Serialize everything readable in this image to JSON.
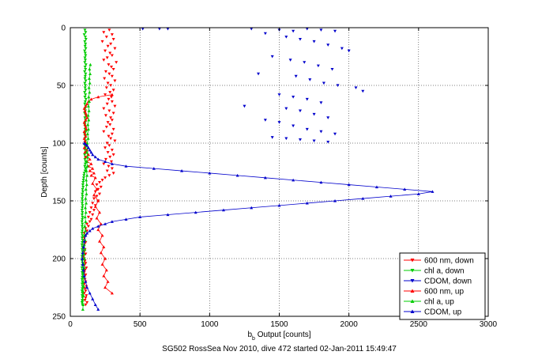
{
  "chart_data": {
    "type": "scatter",
    "title": "SG502 RossSea Nov 2010, dive 472 started 02-Jan-2011 15:49:47",
    "xlabel_main": "b",
    "xlabel_sub": "b",
    "xlabel_rest": " Output [counts]",
    "ylabel": "Depth [counts]",
    "xlim": [
      0,
      3000
    ],
    "ylim": [
      0,
      250
    ],
    "y_reversed": true,
    "grid": true,
    "x_ticks": [
      "0",
      "500",
      "1000",
      "1500",
      "2000",
      "2500",
      "3000"
    ],
    "y_ticks": [
      "0",
      "50",
      "100",
      "150",
      "200",
      "250"
    ],
    "legend_position": "bottom-right",
    "series": [
      {
        "name": "600 nm, down",
        "color": "#ff0000",
        "marker": "triangle-down",
        "style": "scatter",
        "x": [
          280,
          240,
          300,
          260,
          310,
          230,
          290,
          270,
          320,
          250,
          285,
          300,
          265,
          240,
          330,
          275,
          295,
          310,
          255,
          280,
          300,
          245,
          320,
          270,
          290,
          260,
          310,
          285,
          250,
          295,
          275,
          300,
          265,
          320,
          240,
          280,
          310,
          255,
          290,
          300,
          270,
          285,
          260,
          310,
          240,
          300,
          275,
          290,
          320,
          265,
          280,
          250,
          300,
          270,
          310,
          285,
          255,
          295,
          240,
          275,
          300,
          265,
          310,
          280,
          250,
          230,
          210,
          190,
          220,
          200,
          180,
          210,
          190,
          170,
          200,
          160,
          180,
          150,
          170,
          140,
          160,
          130,
          150,
          140,
          120,
          130,
          110,
          120,
          100,
          110,
          100,
          90,
          110,
          100,
          95,
          105,
          100,
          110,
          95,
          100,
          105,
          110,
          100,
          115,
          105,
          100,
          110,
          100,
          105,
          110,
          100,
          115,
          105,
          110,
          100,
          115,
          110,
          105,
          120,
          110
        ],
        "y": [
          2,
          4,
          6,
          8,
          10,
          12,
          14,
          16,
          18,
          20,
          22,
          24,
          26,
          28,
          30,
          32,
          34,
          36,
          38,
          40,
          42,
          44,
          46,
          48,
          50,
          52,
          54,
          56,
          58,
          60,
          62,
          64,
          66,
          68,
          70,
          72,
          74,
          76,
          78,
          80,
          82,
          84,
          86,
          88,
          90,
          92,
          94,
          96,
          98,
          100,
          102,
          104,
          106,
          108,
          110,
          112,
          114,
          116,
          118,
          120,
          122,
          124,
          126,
          128,
          130,
          132,
          134,
          136,
          138,
          140,
          142,
          144,
          146,
          148,
          150,
          152,
          154,
          156,
          158,
          160,
          162,
          164,
          166,
          168,
          170,
          172,
          174,
          176,
          178,
          180,
          182,
          184,
          186,
          188,
          190,
          192,
          194,
          196,
          198,
          200,
          202,
          204,
          206,
          208,
          210,
          212,
          214,
          216,
          218,
          220,
          222,
          224,
          226,
          228,
          230,
          232,
          234,
          236,
          238,
          240
        ]
      },
      {
        "name": "chl a, down",
        "color": "#00cc00",
        "marker": "triangle-down",
        "style": "scatter",
        "x": [
          105,
          110,
          100,
          108,
          112,
          104,
          109,
          106,
          111,
          103,
          107,
          110,
          105,
          108,
          104,
          112,
          106,
          109,
          103,
          110,
          107,
          105,
          111,
          104,
          108,
          106,
          110,
          103,
          109,
          105,
          112,
          107,
          104,
          110,
          106,
          108,
          103,
          111,
          105,
          109,
          107,
          104,
          110,
          106,
          112,
          103,
          108,
          105,
          110,
          107,
          104,
          109,
          106,
          111,
          103,
          108,
          105,
          110,
          107,
          104,
          109,
          106,
          100,
          98,
          96,
          94,
          92,
          90,
          92,
          88,
          90,
          86,
          88,
          85,
          87,
          85,
          88,
          86,
          84,
          87,
          85,
          88,
          86,
          84,
          87,
          85,
          88,
          86,
          84,
          87,
          85,
          88,
          86,
          84,
          87,
          85,
          88,
          86,
          84,
          87,
          85,
          88,
          86,
          84,
          87,
          85,
          88,
          86,
          84,
          87,
          85,
          88,
          86,
          84,
          87,
          85,
          88,
          86,
          84,
          87
        ],
        "y": [
          2,
          4,
          6,
          8,
          10,
          12,
          14,
          16,
          18,
          20,
          22,
          24,
          26,
          28,
          30,
          32,
          34,
          36,
          38,
          40,
          42,
          44,
          46,
          48,
          50,
          52,
          54,
          56,
          58,
          60,
          62,
          64,
          66,
          68,
          70,
          72,
          74,
          76,
          78,
          80,
          82,
          84,
          86,
          88,
          90,
          92,
          94,
          96,
          98,
          100,
          102,
          104,
          106,
          108,
          110,
          112,
          114,
          116,
          118,
          120,
          122,
          124,
          126,
          128,
          130,
          132,
          134,
          136,
          138,
          140,
          142,
          144,
          146,
          148,
          150,
          152,
          154,
          156,
          158,
          160,
          162,
          164,
          166,
          168,
          170,
          172,
          174,
          176,
          178,
          180,
          182,
          184,
          186,
          188,
          190,
          192,
          194,
          196,
          198,
          200,
          202,
          204,
          206,
          208,
          210,
          212,
          214,
          216,
          218,
          220,
          222,
          224,
          226,
          228,
          230,
          232,
          234,
          236,
          238,
          240
        ]
      },
      {
        "name": "CDOM, down",
        "color": "#0000cc",
        "marker": "triangle-down",
        "style": "scatter",
        "x": [
          520,
          640,
          700,
          1300,
          1500,
          1600,
          1700,
          1800,
          1900,
          1400,
          1550,
          1650,
          1750,
          1850,
          1950,
          2000,
          1450,
          1580,
          1680,
          1780,
          1880,
          1350,
          1620,
          1720,
          1820,
          1920,
          2050,
          2100,
          1500,
          1600,
          1700,
          1800,
          1250,
          1550,
          1650,
          1750,
          1850,
          1400,
          1500,
          1600,
          1700,
          1800,
          1900,
          1450,
          1550,
          1650,
          1750,
          1850
        ],
        "y": [
          1,
          1,
          1,
          1,
          2,
          3,
          1,
          2,
          3,
          5,
          8,
          10,
          12,
          15,
          18,
          20,
          25,
          28,
          30,
          33,
          36,
          40,
          42,
          45,
          48,
          50,
          52,
          55,
          58,
          60,
          62,
          65,
          68,
          70,
          72,
          75,
          78,
          80,
          82,
          85,
          88,
          90,
          92,
          95,
          96,
          97,
          98,
          99
        ]
      },
      {
        "name": "600 nm, up",
        "color": "#ff0000",
        "marker": "triangle-up",
        "style": "line",
        "x": [
          300,
          250,
          270,
          240,
          260,
          230,
          250,
          220,
          240,
          210,
          230,
          200,
          220,
          190,
          210,
          180,
          200,
          170,
          190,
          160,
          180,
          150,
          170,
          140,
          160,
          130,
          150,
          120,
          140,
          110,
          130,
          105,
          120,
          100,
          115,
          110,
          105,
          100,
          110,
          105,
          100,
          115,
          110,
          105,
          100,
          110,
          120,
          115,
          110,
          105,
          100,
          110,
          120,
          130,
          150,
          200,
          300
        ],
        "y": [
          230,
          225,
          220,
          215,
          210,
          205,
          200,
          195,
          190,
          185,
          180,
          175,
          170,
          165,
          160,
          155,
          150,
          145,
          140,
          135,
          130,
          128,
          126,
          124,
          122,
          120,
          118,
          116,
          114,
          112,
          110,
          108,
          106,
          104,
          102,
          100,
          98,
          96,
          94,
          92,
          90,
          88,
          86,
          84,
          82,
          80,
          78,
          76,
          74,
          72,
          70,
          68,
          66,
          64,
          62,
          60,
          58
        ]
      },
      {
        "name": "chl a, up",
        "color": "#00cc00",
        "marker": "triangle-up",
        "style": "line",
        "x": [
          90,
          92,
          88,
          94,
          90,
          96,
          92,
          98,
          94,
          100,
          96,
          102,
          98,
          104,
          100,
          106,
          102,
          108,
          104,
          110,
          106,
          112,
          108,
          114,
          110,
          116,
          112,
          118,
          114,
          120,
          116,
          122,
          118,
          124,
          120,
          126,
          122,
          128,
          124,
          130,
          126,
          132,
          128,
          134,
          130,
          136,
          132,
          138,
          134,
          140,
          136,
          142,
          138,
          144
        ],
        "y": [
          244,
          240,
          236,
          232,
          228,
          224,
          220,
          216,
          212,
          208,
          204,
          200,
          196,
          192,
          188,
          184,
          180,
          176,
          172,
          168,
          164,
          160,
          156,
          152,
          148,
          144,
          140,
          136,
          132,
          128,
          124,
          120,
          116,
          112,
          108,
          104,
          100,
          96,
          92,
          88,
          84,
          80,
          76,
          72,
          68,
          64,
          60,
          56,
          52,
          48,
          44,
          40,
          36,
          32
        ]
      },
      {
        "name": "CDOM, up",
        "color": "#0000cc",
        "marker": "triangle-up",
        "style": "line",
        "x": [
          200,
          180,
          160,
          140,
          120,
          110,
          100,
          95,
          90,
          85,
          90,
          95,
          100,
          110,
          120,
          140,
          160,
          200,
          250,
          300,
          400,
          500,
          700,
          900,
          1100,
          1300,
          1500,
          1700,
          1900,
          2100,
          2300,
          2500,
          2600,
          2400,
          2200,
          2000,
          1800,
          1600,
          1400,
          1200,
          1000,
          800,
          600,
          400,
          300,
          250,
          200,
          180,
          160,
          150,
          140,
          130,
          120,
          110,
          100
        ],
        "y": [
          244,
          240,
          235,
          230,
          225,
          220,
          215,
          210,
          205,
          200,
          195,
          190,
          185,
          180,
          178,
          176,
          174,
          172,
          170,
          168,
          166,
          164,
          162,
          160,
          158,
          156,
          154,
          152,
          150,
          148,
          146,
          144,
          142,
          140,
          138,
          136,
          134,
          132,
          130,
          128,
          126,
          124,
          122,
          120,
          118,
          116,
          114,
          112,
          110,
          108,
          106,
          104,
          102,
          101,
          100
        ]
      }
    ]
  }
}
